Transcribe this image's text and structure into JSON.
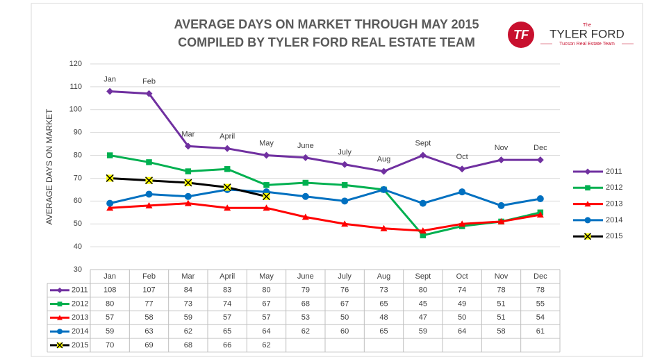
{
  "chart_data": {
    "type": "line",
    "title": "AVERAGE DAYS ON MARKET THROUGH MAY 2015",
    "subtitle": "COMPILED BY TYLER FORD REAL ESTATE TEAM",
    "y_label": "AVERAGE DAYS ON MARKET",
    "categories": [
      "Jan",
      "Feb",
      "Mar",
      "April",
      "May",
      "June",
      "July",
      "Aug",
      "Sept",
      "Oct",
      "Nov",
      "Dec"
    ],
    "series": [
      {
        "name": "2011",
        "color": "#7030a0",
        "marker": "diamond",
        "values": [
          108,
          107,
          84,
          83,
          80,
          79,
          76,
          73,
          80,
          74,
          78,
          78
        ]
      },
      {
        "name": "2012",
        "color": "#00b050",
        "marker": "square",
        "values": [
          80,
          77,
          73,
          74,
          67,
          68,
          67,
          65,
          45,
          49,
          51,
          55
        ]
      },
      {
        "name": "2013",
        "color": "#ff0000",
        "marker": "triangle",
        "values": [
          57,
          58,
          59,
          57,
          57,
          53,
          50,
          48,
          47,
          50,
          51,
          54
        ]
      },
      {
        "name": "2014",
        "color": "#0070c0",
        "marker": "circle",
        "values": [
          59,
          63,
          62,
          65,
          64,
          62,
          60,
          65,
          59,
          64,
          58,
          61
        ]
      },
      {
        "name": "2015",
        "color": "#000000",
        "marker": "x",
        "values": [
          70,
          69,
          68,
          66,
          62,
          null,
          null,
          null,
          null,
          null,
          null,
          null
        ]
      }
    ],
    "ylim": [
      30,
      120
    ],
    "yticks": [
      30,
      40,
      50,
      60,
      70,
      80,
      90,
      100,
      110,
      120
    ],
    "grid": true,
    "legend": "right",
    "data_table": true
  },
  "logo": {
    "monogram": "TF",
    "small": "The",
    "name": "TYLER FORD",
    "tagline": "Tucson Real Estate Team"
  }
}
